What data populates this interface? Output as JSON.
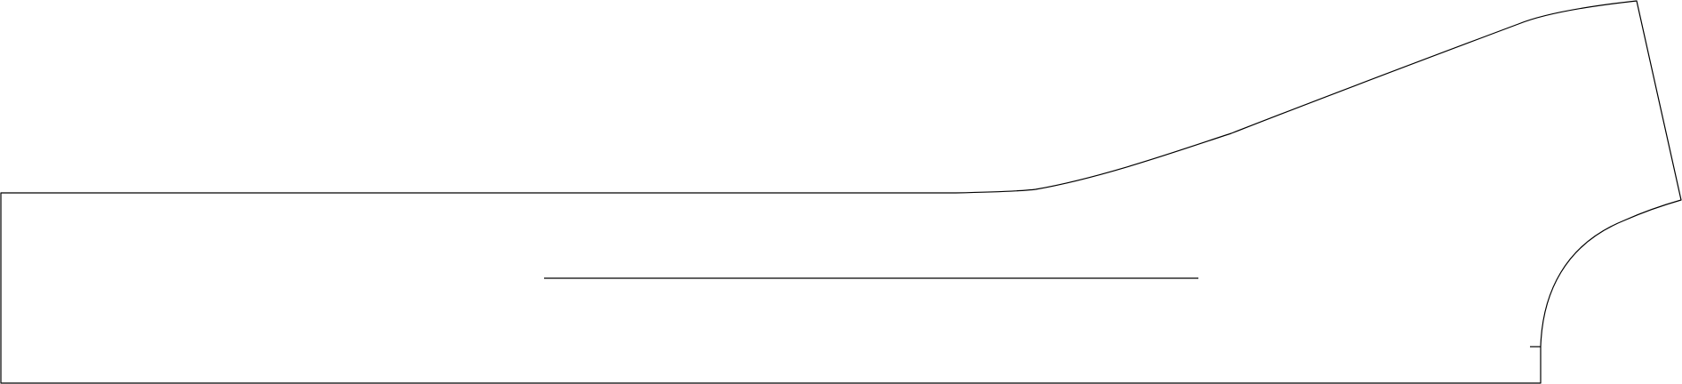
{
  "diagram": {
    "background_color": "#ffffff",
    "stroke_color": "#000000",
    "elements": [
      {
        "kind": "pattern-outline"
      },
      {
        "kind": "grainline"
      },
      {
        "kind": "notch"
      }
    ]
  }
}
